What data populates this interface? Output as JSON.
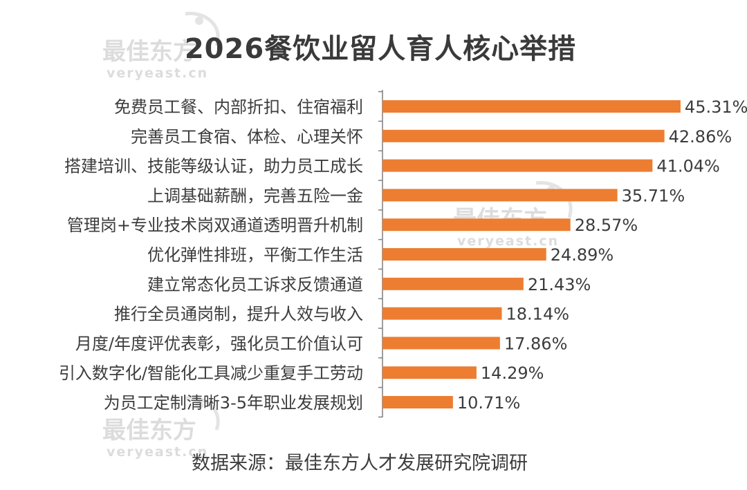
{
  "title": "2026餐饮业留人育人核心举措",
  "source": "数据来源：最佳东方人才发展研究院调研",
  "watermark": {
    "text_cn": "最佳东方",
    "text_en": "veryeast.cn"
  },
  "colors": {
    "bar": "#ED7D31",
    "text": "#3c3c3c",
    "axis": "#7f7f7f",
    "watermark": "#d9d9d9"
  },
  "chart_data": {
    "type": "bar",
    "orientation": "horizontal",
    "categories": [
      "免费员工餐、内部折扣、住宿福利",
      "完善员工食宿、体检、心理关怀",
      "搭建培训、技能等级认证，助力员工成长",
      "上调基础薪酬，完善五险一金",
      "管理岗+专业技术岗双通道透明晋升机制",
      "优化弹性排班，平衡工作生活",
      "建立常态化员工诉求反馈通道",
      "推行全员通岗制，提升人效与收入",
      "月度/年度评优表彰，强化员工价值认可",
      "引入数字化/智能化工具减少重复手工劳动",
      "为员工定制清晰3-5年职业发展规划"
    ],
    "values": [
      45.31,
      42.86,
      41.04,
      35.71,
      28.57,
      24.89,
      21.43,
      18.14,
      17.86,
      14.29,
      10.71
    ],
    "labels": [
      "45.31%",
      "42.86%",
      "41.04%",
      "35.71%",
      "28.57%",
      "24.89%",
      "21.43%",
      "18.14%",
      "17.86%",
      "14.29%",
      "10.71%"
    ],
    "xlim": [
      0,
      47
    ],
    "grid": false,
    "legend": "none"
  }
}
